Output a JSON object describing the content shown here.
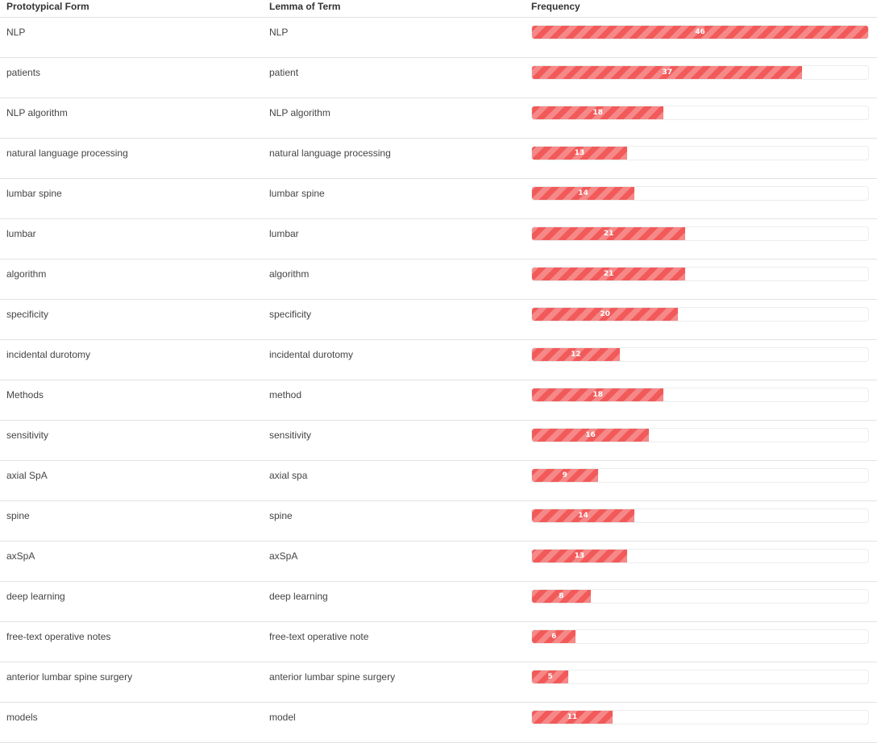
{
  "table": {
    "columns": [
      "Prototypical Form",
      "Lemma of Term",
      "Frequency"
    ],
    "max_frequency": 46,
    "bar_color": "#f25a5a",
    "rows": [
      {
        "form": "NLP",
        "lemma": "NLP",
        "frequency": 46
      },
      {
        "form": "patients",
        "lemma": "patient",
        "frequency": 37
      },
      {
        "form": "NLP algorithm",
        "lemma": "NLP algorithm",
        "frequency": 18
      },
      {
        "form": "natural language processing",
        "lemma": "natural language processing",
        "frequency": 13
      },
      {
        "form": "lumbar spine",
        "lemma": "lumbar spine",
        "frequency": 14
      },
      {
        "form": "lumbar",
        "lemma": "lumbar",
        "frequency": 21
      },
      {
        "form": "algorithm",
        "lemma": "algorithm",
        "frequency": 21
      },
      {
        "form": "specificity",
        "lemma": "specificity",
        "frequency": 20
      },
      {
        "form": "incidental durotomy",
        "lemma": "incidental durotomy",
        "frequency": 12
      },
      {
        "form": "Methods",
        "lemma": "method",
        "frequency": 18
      },
      {
        "form": "sensitivity",
        "lemma": "sensitivity",
        "frequency": 16
      },
      {
        "form": "axial SpA",
        "lemma": "axial spa",
        "frequency": 9
      },
      {
        "form": "spine",
        "lemma": "spine",
        "frequency": 14
      },
      {
        "form": "axSpA",
        "lemma": "axSpA",
        "frequency": 13
      },
      {
        "form": "deep learning",
        "lemma": "deep learning",
        "frequency": 8
      },
      {
        "form": "free-text operative notes",
        "lemma": "free-text operative note",
        "frequency": 6
      },
      {
        "form": "anterior lumbar spine surgery",
        "lemma": "anterior lumbar spine surgery",
        "frequency": 5
      },
      {
        "form": "models",
        "lemma": "model",
        "frequency": 11
      }
    ]
  }
}
